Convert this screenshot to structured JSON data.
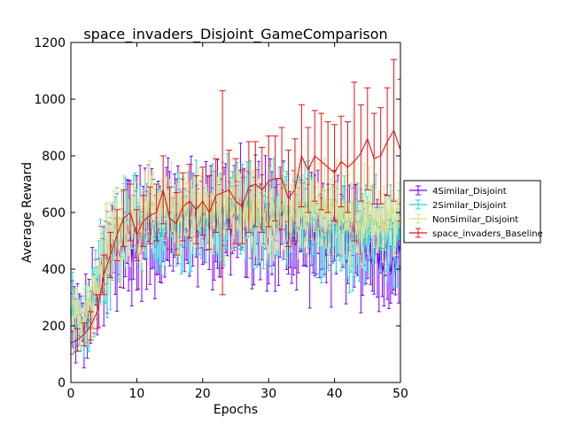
{
  "chart_data": {
    "type": "line",
    "title": "space_invaders_Disjoint_GameComparison",
    "xlabel": "Epochs",
    "ylabel": "Average Reward",
    "xlim": [
      0,
      50
    ],
    "ylim": [
      0,
      1200
    ],
    "xticks": [
      0,
      10,
      20,
      30,
      40,
      50
    ],
    "yticks": [
      0,
      200,
      400,
      600,
      800,
      1000,
      1200
    ],
    "grid": false,
    "legend_position": "right",
    "series": [
      {
        "name": "4Similar_Disjoint",
        "color": "#7b00ff",
        "step": 0.25,
        "anchors": [
          [
            0,
            230,
            90
          ],
          [
            2,
            200,
            100
          ],
          [
            4,
            320,
            130
          ],
          [
            6,
            450,
            160
          ],
          [
            8,
            500,
            170
          ],
          [
            10,
            530,
            160
          ],
          [
            14,
            560,
            140
          ],
          [
            18,
            570,
            140
          ],
          [
            22,
            580,
            150
          ],
          [
            26,
            580,
            150
          ],
          [
            30,
            560,
            150
          ],
          [
            34,
            540,
            150
          ],
          [
            38,
            520,
            140
          ],
          [
            42,
            500,
            140
          ],
          [
            46,
            480,
            140
          ],
          [
            50,
            450,
            140
          ]
        ]
      },
      {
        "name": "2Similar_Disjoint",
        "color": "#1fd6d6",
        "step": 0.25,
        "anchors": [
          [
            0,
            250,
            90
          ],
          [
            2,
            190,
            90
          ],
          [
            4,
            330,
            110
          ],
          [
            6,
            480,
            140
          ],
          [
            8,
            530,
            130
          ],
          [
            10,
            560,
            120
          ],
          [
            14,
            560,
            110
          ],
          [
            18,
            570,
            120
          ],
          [
            22,
            580,
            120
          ],
          [
            26,
            590,
            120
          ],
          [
            30,
            580,
            130
          ],
          [
            34,
            570,
            130
          ],
          [
            38,
            560,
            130
          ],
          [
            42,
            550,
            130
          ],
          [
            46,
            540,
            130
          ],
          [
            50,
            530,
            120
          ]
        ]
      },
      {
        "name": "NonSimilar_Disjoint",
        "color": "#d7e08a",
        "step": 0.25,
        "anchors": [
          [
            0,
            240,
            80
          ],
          [
            2,
            220,
            80
          ],
          [
            4,
            340,
            100
          ],
          [
            6,
            500,
            130
          ],
          [
            8,
            560,
            120
          ],
          [
            10,
            580,
            110
          ],
          [
            14,
            600,
            100
          ],
          [
            18,
            620,
            100
          ],
          [
            22,
            620,
            110
          ],
          [
            26,
            600,
            110
          ],
          [
            30,
            600,
            110
          ],
          [
            34,
            600,
            120
          ],
          [
            38,
            590,
            120
          ],
          [
            42,
            590,
            120
          ],
          [
            46,
            580,
            110
          ],
          [
            50,
            570,
            110
          ]
        ]
      },
      {
        "name": "space_invaders_Baseline",
        "color": "#e6150f",
        "x": [
          0,
          1,
          2,
          3,
          4,
          5,
          6,
          7,
          8,
          9,
          10,
          11,
          12,
          13,
          14,
          15,
          16,
          17,
          18,
          19,
          20,
          21,
          22,
          23,
          24,
          25,
          26,
          27,
          28,
          29,
          30,
          31,
          32,
          33,
          34,
          35,
          36,
          37,
          38,
          39,
          40,
          41,
          42,
          43,
          44,
          45,
          46,
          47,
          48,
          49,
          50
        ],
        "y": [
          140,
          150,
          170,
          200,
          250,
          380,
          450,
          520,
          580,
          600,
          520,
          570,
          590,
          600,
          680,
          580,
          560,
          620,
          640,
          610,
          640,
          600,
          660,
          670,
          680,
          640,
          620,
          690,
          700,
          680,
          710,
          720,
          720,
          650,
          680,
          800,
          750,
          800,
          780,
          760,
          740,
          780,
          760,
          780,
          810,
          860,
          790,
          800,
          850,
          890,
          820
        ],
        "err": [
          40,
          40,
          40,
          50,
          60,
          70,
          80,
          90,
          100,
          100,
          90,
          90,
          100,
          100,
          120,
          110,
          110,
          120,
          130,
          120,
          120,
          130,
          130,
          360,
          140,
          150,
          130,
          160,
          150,
          150,
          160,
          150,
          180,
          170,
          180,
          180,
          150,
          160,
          170,
          160,
          170,
          160,
          160,
          280,
          170,
          180,
          160,
          170,
          190,
          250,
          250
        ]
      }
    ]
  }
}
